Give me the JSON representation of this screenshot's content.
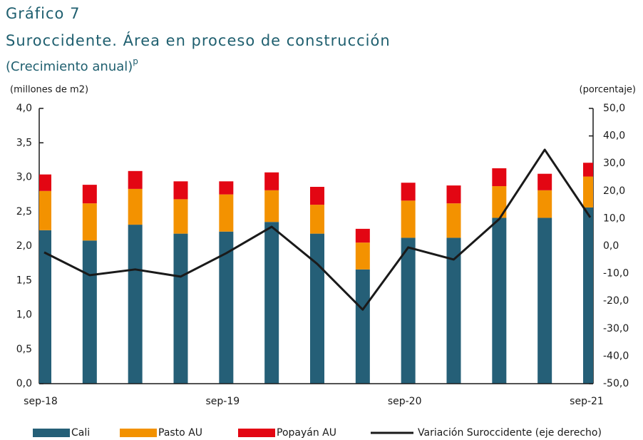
{
  "chart_data": {
    "type": "stacked_bar_line",
    "title": "Gráfico 7",
    "subtitle": "Suroccidente. Área en proceso de construcción",
    "note": "(Crecimiento anual)",
    "note_superscript": "p",
    "y_label": "(millones  de m2)",
    "y2_label": "(porcentaje)",
    "categories": [
      "sep-18",
      null,
      null,
      null,
      "sep-19",
      null,
      null,
      null,
      "sep-20",
      null,
      null,
      null,
      "sep-21"
    ],
    "series": [
      {
        "name": "Cali",
        "color": "#255f77",
        "kind": "bar",
        "values": [
          2.23,
          2.08,
          2.31,
          2.18,
          2.21,
          2.35,
          2.18,
          1.66,
          2.12,
          2.12,
          2.41,
          2.41,
          2.56
        ]
      },
      {
        "name": "Pasto AU",
        "color": "#f39200",
        "kind": "bar",
        "values": [
          0.57,
          0.54,
          0.52,
          0.5,
          0.54,
          0.46,
          0.42,
          0.39,
          0.54,
          0.5,
          0.46,
          0.4,
          0.45
        ]
      },
      {
        "name": "Popayán AU",
        "color": "#e30613",
        "kind": "bar",
        "values": [
          0.24,
          0.27,
          0.26,
          0.26,
          0.19,
          0.26,
          0.26,
          0.2,
          0.26,
          0.26,
          0.26,
          0.24,
          0.2
        ]
      },
      {
        "name": "Variación Suroccidente (eje derecho)",
        "color": "#1a1a1a",
        "kind": "line",
        "axis": "y2",
        "values": [
          -2.3,
          -10.6,
          -8.5,
          -11.1,
          -2.6,
          7.0,
          -6.5,
          -23.1,
          -0.5,
          -4.9,
          9.8,
          35.0,
          10.4
        ]
      }
    ],
    "ylim": [
      0,
      4
    ],
    "yticks": [
      {
        "value": 0,
        "label": "0,0"
      },
      {
        "value": 0.5,
        "label": "0,5"
      },
      {
        "value": 1,
        "label": "1,0"
      },
      {
        "value": 1.5,
        "label": "1,5"
      },
      {
        "value": 2,
        "label": "2,0"
      },
      {
        "value": 2.5,
        "label": "2,5"
      },
      {
        "value": 3,
        "label": "3,0"
      },
      {
        "value": 3.5,
        "label": "3,5"
      },
      {
        "value": 4,
        "label": "4,0"
      }
    ],
    "y2lim": [
      -50,
      50
    ],
    "y2ticks": [
      {
        "value": -50,
        "label": "-50,0"
      },
      {
        "value": -40,
        "label": "-40,0"
      },
      {
        "value": -30,
        "label": "-30,0"
      },
      {
        "value": -20,
        "label": "-20,0"
      },
      {
        "value": -10,
        "label": "-10,0"
      },
      {
        "value": 0,
        "label": "0,0"
      },
      {
        "value": 10,
        "label": "10,0"
      },
      {
        "value": 20,
        "label": "20,0"
      },
      {
        "value": 30,
        "label": "30,0"
      },
      {
        "value": 40,
        "label": "40,0"
      },
      {
        "value": 50,
        "label": "50,0"
      }
    ],
    "legend": "bottom"
  }
}
